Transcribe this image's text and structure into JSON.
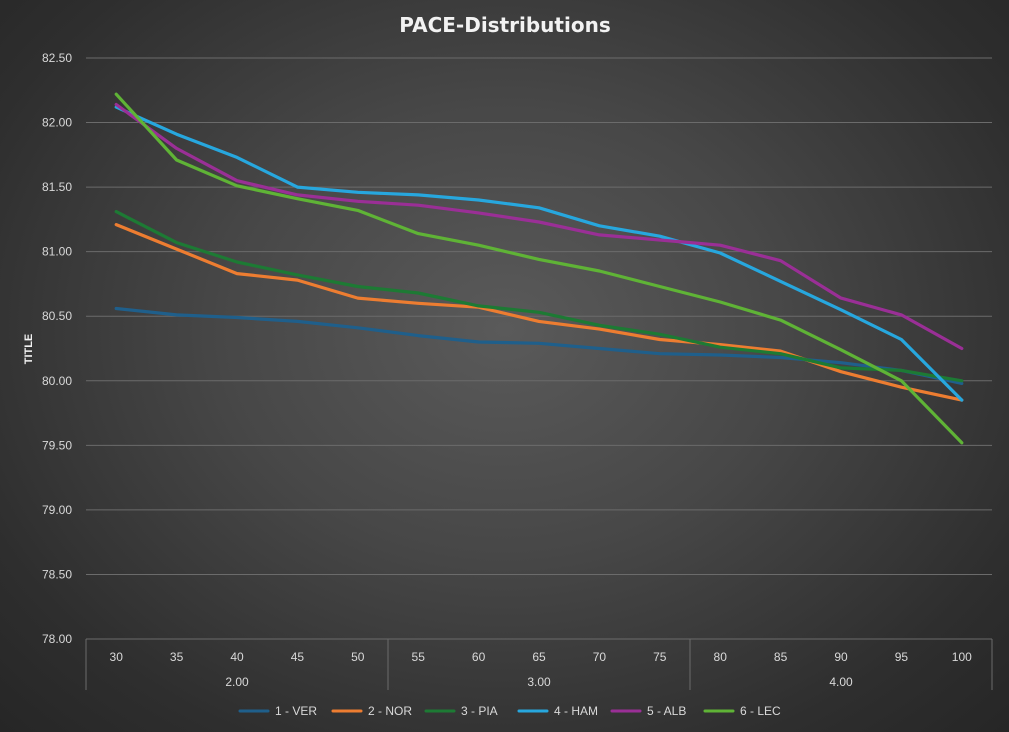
{
  "chart_data": {
    "type": "line",
    "title": "PACE-Distributions",
    "ylabel": "TITLE",
    "xlabel": "",
    "ylim": [
      78.0,
      82.5
    ],
    "ytick_step": 0.5,
    "yticks": [
      "78.00",
      "78.50",
      "79.00",
      "79.50",
      "80.00",
      "80.50",
      "81.00",
      "81.50",
      "82.00",
      "82.50"
    ],
    "categories": [
      "30",
      "35",
      "40",
      "45",
      "50",
      "55",
      "60",
      "65",
      "70",
      "75",
      "80",
      "85",
      "90",
      "95",
      "100"
    ],
    "groups": [
      {
        "label": "2.00",
        "span": [
          0,
          4
        ]
      },
      {
        "label": "3.00",
        "span": [
          5,
          9
        ]
      },
      {
        "label": "4.00",
        "span": [
          10,
          14
        ]
      }
    ],
    "series": [
      {
        "name": "1 - VER",
        "color": "#1f5f8b",
        "values": [
          80.56,
          80.51,
          80.49,
          80.46,
          80.41,
          80.35,
          80.3,
          80.29,
          80.25,
          80.21,
          80.2,
          80.18,
          80.14,
          80.08,
          79.98
        ]
      },
      {
        "name": "2 - NOR",
        "color": "#ed7d31",
        "values": [
          81.21,
          81.02,
          80.83,
          80.78,
          80.64,
          80.6,
          80.57,
          80.46,
          80.4,
          80.32,
          80.28,
          80.23,
          80.07,
          79.95,
          79.85
        ]
      },
      {
        "name": "3 - PIA",
        "color": "#1d7a34",
        "values": [
          81.31,
          81.07,
          80.92,
          80.82,
          80.73,
          80.68,
          80.58,
          80.53,
          80.43,
          80.36,
          80.26,
          80.21,
          80.1,
          80.08,
          80.0
        ]
      },
      {
        "name": "4 - HAM",
        "color": "#27a7de",
        "values": [
          82.12,
          81.91,
          81.73,
          81.5,
          81.46,
          81.44,
          81.4,
          81.34,
          81.2,
          81.12,
          80.99,
          80.77,
          80.55,
          80.32,
          79.85
        ]
      },
      {
        "name": "5 - ALB",
        "color": "#9a2f96",
        "values": [
          82.14,
          81.8,
          81.55,
          81.44,
          81.39,
          81.36,
          81.3,
          81.23,
          81.13,
          81.09,
          81.05,
          80.93,
          80.64,
          80.51,
          80.25
        ]
      },
      {
        "name": "6 - LEC",
        "color": "#5fb336",
        "values": [
          82.22,
          81.71,
          81.51,
          81.41,
          81.32,
          81.14,
          81.05,
          80.94,
          80.85,
          80.73,
          80.61,
          80.47,
          80.24,
          80.0,
          79.52
        ]
      }
    ],
    "grid": true,
    "legend": "bottom"
  }
}
